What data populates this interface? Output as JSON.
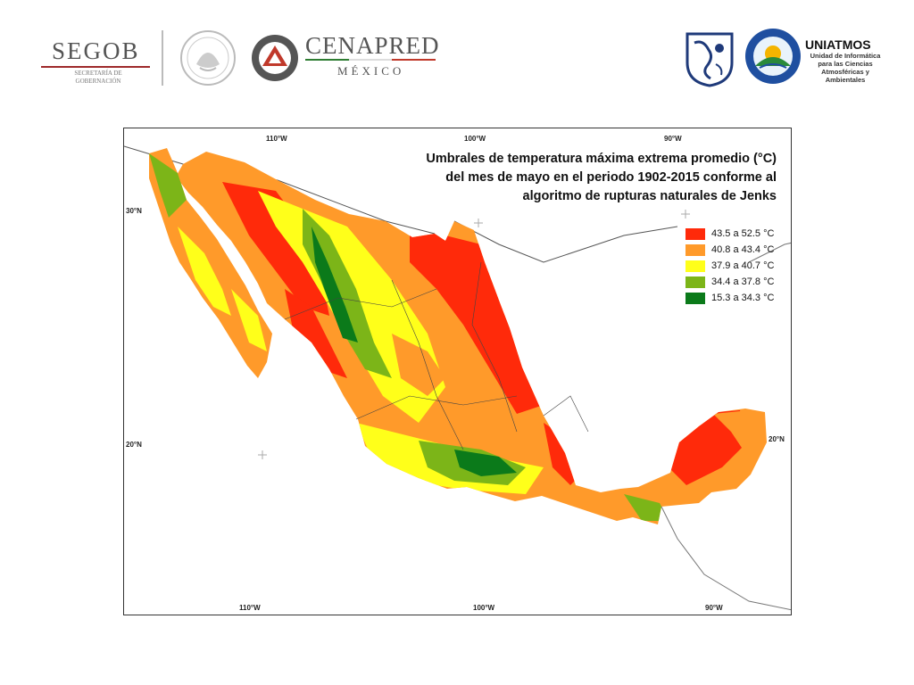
{
  "header": {
    "segob": {
      "name": "SEGOB",
      "subtitle_line1": "SECRETARÍA DE",
      "subtitle_line2": "GOBERNACIÓN",
      "accent": "#9e2a2b",
      "green": "#2e7d32"
    },
    "seal": {
      "icon": "mexico-coat-of-arms-icon"
    },
    "cenapred": {
      "name": "CENAPRED",
      "subtitle": "MÉXICO",
      "icon": "cenapred-triangle-logo-icon",
      "accent": "#c0392b"
    },
    "unam": {
      "icon": "unam-shield-icon"
    },
    "centro": {
      "icon": "centro-ciencias-atmosfera-logo-icon"
    },
    "uniatmos": {
      "name": "UNIATMOS",
      "subtitle": "Unidad de Informática para las Ciencias Atmosféricas y Ambientales"
    }
  },
  "map": {
    "title_line1": "Umbrales de temperatura máxima extrema promedio (°C)",
    "title_line2": "del mes de mayo en el periodo 1902-2015 conforme al",
    "title_line3": "algoritmo de rupturas naturales de Jenks",
    "top_ticks": [
      "110°W",
      "100°W",
      "90°W"
    ],
    "bottom_ticks": [
      "110°W",
      "100°W",
      "90°W"
    ],
    "left_ticks": [
      "30°N",
      "20°N"
    ],
    "right_ticks": [
      "20°N"
    ],
    "legend": [
      {
        "label": "43.5 a 52.5 °C",
        "color": "#ff2a0a"
      },
      {
        "label": "40.8 a 43.4 °C",
        "color": "#ff9a2a"
      },
      {
        "label": "37.9 a 40.7 °C",
        "color": "#ffff1a"
      },
      {
        "label": "34.4 a 37.8 °C",
        "color": "#7cb518"
      },
      {
        "label": "15.3 a 34.3 °C",
        "color": "#0b7a1a"
      }
    ]
  }
}
